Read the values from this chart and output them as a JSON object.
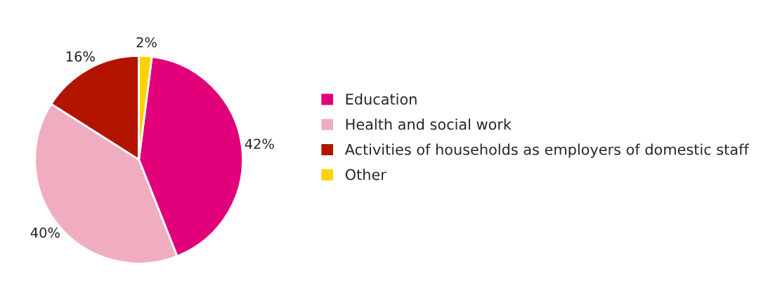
{
  "chart_data": {
    "type": "pie",
    "categories": [
      "Education",
      "Health and social work",
      "Activities of households as employers of domestic staff",
      "Other"
    ],
    "values": [
      42,
      40,
      16,
      2
    ],
    "colors": [
      "#e2007a",
      "#f0adc0",
      "#b31400",
      "#ffd200"
    ],
    "value_labels": [
      "42%",
      "40%",
      "16%",
      "2%"
    ],
    "legend": "right"
  }
}
